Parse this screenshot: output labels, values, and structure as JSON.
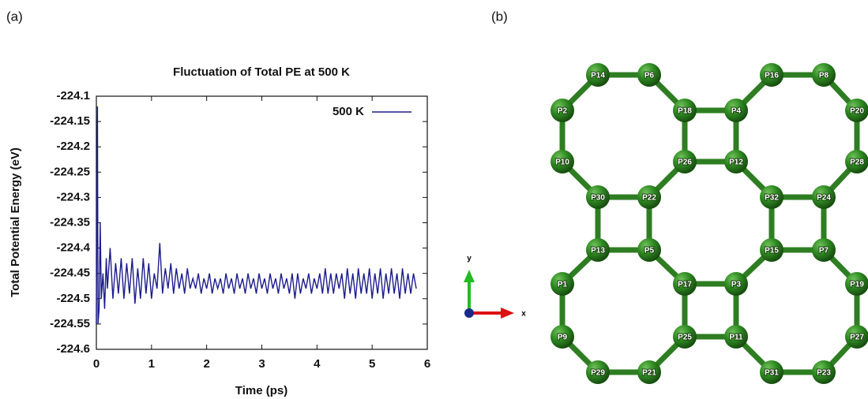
{
  "panel_labels": [
    "(a)",
    "(b)"
  ],
  "chart_data": {
    "type": "line",
    "title": "Fluctuation of Total PE at 500 K",
    "x_label": "Time (ps)",
    "y_label": "Total Potential Energy (eV)",
    "xlim": [
      0,
      6
    ],
    "xticks": [
      0,
      1,
      2,
      3,
      4,
      5,
      6
    ],
    "ylim": [
      -224.6,
      -224.1
    ],
    "yticks": [
      -224.6,
      -224.55,
      -224.5,
      -224.45,
      -224.4,
      -224.35,
      -224.3,
      -224.25,
      -224.2,
      -224.15,
      -224.1
    ],
    "legend": "upper right",
    "x": [
      0,
      0.01,
      0.02,
      0.03,
      0.05,
      0.07,
      0.09,
      0.12,
      0.15,
      0.18,
      0.2,
      0.25,
      0.3,
      0.35,
      0.4,
      0.45,
      0.5,
      0.55,
      0.6,
      0.65,
      0.7,
      0.75,
      0.8,
      0.85,
      0.9,
      0.95,
      1,
      1.05,
      1.1,
      1.15,
      1.2,
      1.25,
      1.3,
      1.35,
      1.4,
      1.45,
      1.5,
      1.55,
      1.6,
      1.65,
      1.7,
      1.75,
      1.8,
      1.85,
      1.9,
      1.95,
      2,
      2.05,
      2.1,
      2.15,
      2.2,
      2.25,
      2.3,
      2.35,
      2.4,
      2.45,
      2.5,
      2.55,
      2.6,
      2.65,
      2.7,
      2.75,
      2.8,
      2.85,
      2.9,
      2.95,
      3,
      3.05,
      3.1,
      3.15,
      3.2,
      3.25,
      3.3,
      3.35,
      3.4,
      3.45,
      3.5,
      3.55,
      3.6,
      3.65,
      3.7,
      3.75,
      3.8,
      3.85,
      3.9,
      3.95,
      4,
      4.05,
      4.1,
      4.15,
      4.2,
      4.25,
      4.3,
      4.35,
      4.4,
      4.45,
      4.5,
      4.55,
      4.6,
      4.65,
      4.7,
      4.75,
      4.8,
      4.85,
      4.9,
      4.95,
      5,
      5.05,
      5.1,
      5.15,
      5.2,
      5.25,
      5.3,
      5.35,
      5.4,
      5.45,
      5.5,
      5.55,
      5.6,
      5.65,
      5.7,
      5.75,
      5.8
    ],
    "series": [
      {
        "name": "500 K",
        "color": "#1c1c8c",
        "values": [
          -224.55,
          -224.3,
          -224.12,
          -224.55,
          -224.52,
          -224.35,
          -224.5,
          -224.45,
          -224.52,
          -224.42,
          -224.48,
          -224.4,
          -224.5,
          -224.43,
          -224.49,
          -224.42,
          -224.5,
          -224.43,
          -224.49,
          -224.42,
          -224.51,
          -224.44,
          -224.5,
          -224.42,
          -224.49,
          -224.43,
          -224.5,
          -224.45,
          -224.48,
          -224.39,
          -224.49,
          -224.44,
          -224.48,
          -224.43,
          -224.49,
          -224.44,
          -224.48,
          -224.45,
          -224.49,
          -224.44,
          -224.48,
          -224.46,
          -224.48,
          -224.45,
          -224.49,
          -224.46,
          -224.48,
          -224.45,
          -224.49,
          -224.46,
          -224.48,
          -224.46,
          -224.49,
          -224.45,
          -224.48,
          -224.46,
          -224.49,
          -224.45,
          -224.48,
          -224.46,
          -224.49,
          -224.45,
          -224.48,
          -224.46,
          -224.49,
          -224.45,
          -224.48,
          -224.46,
          -224.49,
          -224.45,
          -224.48,
          -224.46,
          -224.49,
          -224.45,
          -224.48,
          -224.46,
          -224.49,
          -224.45,
          -224.5,
          -224.45,
          -224.49,
          -224.46,
          -224.48,
          -224.45,
          -224.49,
          -224.46,
          -224.48,
          -224.45,
          -224.49,
          -224.44,
          -224.49,
          -224.45,
          -224.49,
          -224.45,
          -224.48,
          -224.45,
          -224.5,
          -224.44,
          -224.49,
          -224.45,
          -224.5,
          -224.44,
          -224.49,
          -224.45,
          -224.49,
          -224.44,
          -224.5,
          -224.45,
          -224.49,
          -224.44,
          -224.5,
          -224.45,
          -224.49,
          -224.44,
          -224.49,
          -224.45,
          -224.5,
          -224.44,
          -224.49,
          -224.45,
          -224.49,
          -224.45,
          -224.48
        ]
      }
    ]
  },
  "triad": {
    "x": "x",
    "y": "y"
  },
  "network": {
    "nodes": [
      "P1",
      "P2",
      "P3",
      "P4",
      "P5",
      "P6",
      "P7",
      "P8",
      "P9",
      "P10",
      "P11",
      "P12",
      "P13",
      "P14",
      "P15",
      "P16",
      "P17",
      "P18",
      "P19",
      "P20",
      "P21",
      "P22",
      "P23",
      "P24",
      "P25",
      "P26",
      "P27",
      "P28",
      "P29",
      "P30",
      "P31",
      "P32"
    ]
  }
}
